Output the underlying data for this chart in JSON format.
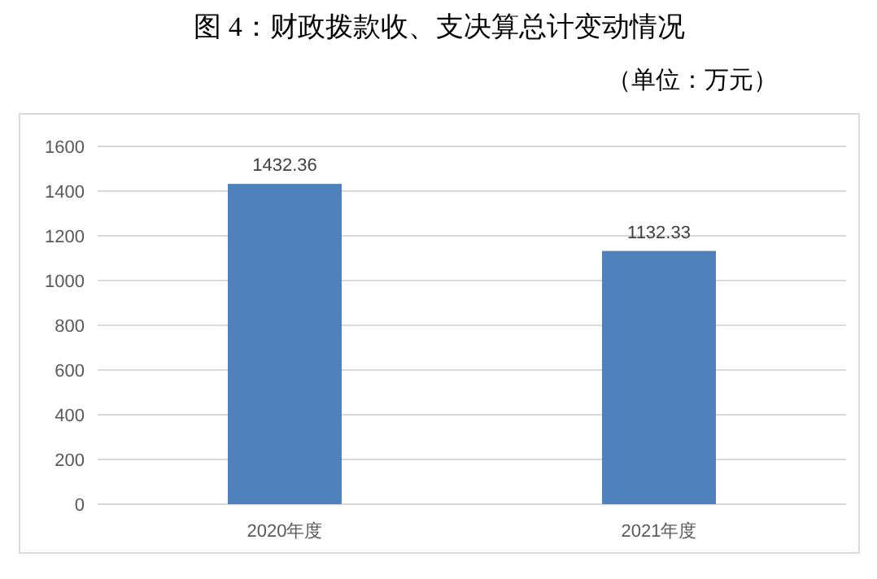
{
  "chart_data": {
    "type": "bar",
    "title": "图 4：财政拨款收、支决算总计变动情况",
    "subtitle": "（单位：万元）",
    "categories": [
      "2020年度",
      "2021年度"
    ],
    "values": [
      1432.36,
      1132.33
    ],
    "color": "#4f81bd",
    "ylim": [
      0,
      1600
    ],
    "yticks": [
      0,
      200,
      400,
      600,
      800,
      1000,
      1200,
      1400,
      1600
    ],
    "grid": "y",
    "data_labels": true
  }
}
